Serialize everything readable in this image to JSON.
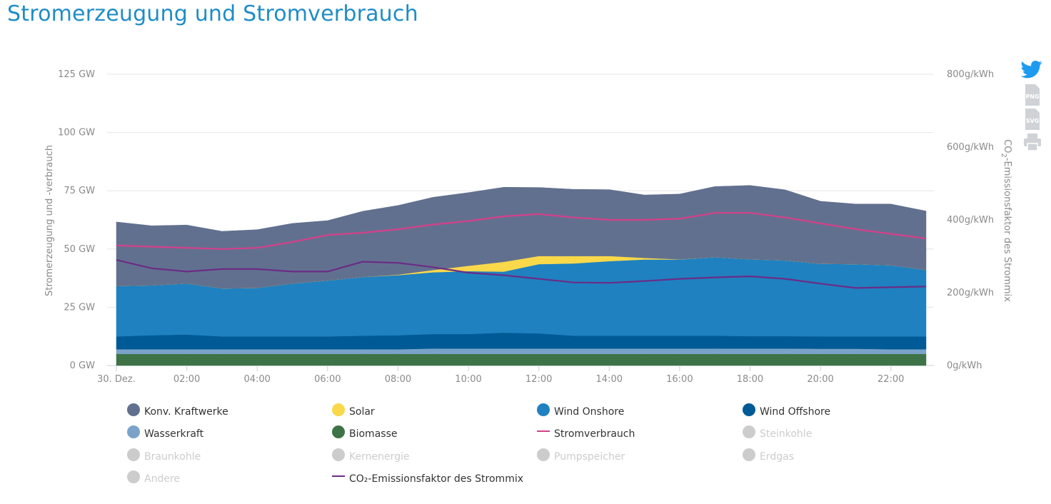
{
  "page": {
    "title": "Stromerzeugung und Stromverbrauch"
  },
  "toolbar": [
    {
      "id": "twitter",
      "icon": "twitter-icon"
    },
    {
      "id": "png",
      "icon": "png-download-icon",
      "label": "PNG"
    },
    {
      "id": "svg",
      "icon": "svg-download-icon",
      "label": "SVG"
    },
    {
      "id": "print",
      "icon": "print-icon"
    }
  ],
  "chart_data": {
    "type": "area",
    "title": "",
    "ylabel": "Stromerzeugung und -verbrauch",
    "y2label": "CO2-Emissionsfaktor des Strommix",
    "ylim": [
      0,
      125
    ],
    "y2lim": [
      0,
      800
    ],
    "grid": true,
    "stacked": true,
    "x": [
      "30. Dez.",
      "01:00",
      "02:00",
      "03:00",
      "04:00",
      "05:00",
      "06:00",
      "07:00",
      "08:00",
      "09:00",
      "10:00",
      "11:00",
      "12:00",
      "13:00",
      "14:00",
      "15:00",
      "16:00",
      "17:00",
      "18:00",
      "19:00",
      "20:00",
      "21:00",
      "22:00",
      "23:00"
    ],
    "x_tick_labels": [
      "30. Dez.",
      "02:00",
      "04:00",
      "06:00",
      "08:00",
      "10:00",
      "12:00",
      "14:00",
      "16:00",
      "18:00",
      "20:00",
      "22:00"
    ],
    "y_tick_labels": [
      "0 GW",
      "25 GW",
      "50 GW",
      "75 GW",
      "100 GW",
      "125 GW"
    ],
    "y2_tick_labels": [
      "0g/kWh",
      "200g/kWh",
      "400g/kWh",
      "600g/kWh",
      "800g/kWh"
    ],
    "area_series": [
      {
        "name": "Biomasse",
        "color": "#3e7348",
        "values": [
          5,
          5,
          5,
          5,
          5,
          5,
          5,
          5,
          5,
          5,
          5,
          5,
          5,
          5,
          5,
          5,
          5,
          5,
          5,
          5,
          5,
          5,
          5,
          5
        ]
      },
      {
        "name": "Wasserkraft",
        "color": "#7ba3c9",
        "values": [
          2,
          2,
          2,
          2,
          2,
          2,
          2,
          2,
          2,
          2.3,
          2.3,
          2.3,
          2.3,
          2.3,
          2.3,
          2.3,
          2.3,
          2.3,
          2.3,
          2.3,
          2.2,
          2.2,
          2,
          2
        ]
      },
      {
        "name": "Wind Offshore",
        "color": "#005a96",
        "values": [
          5.5,
          6,
          6.3,
          5.5,
          5.5,
          5.5,
          5.5,
          5.8,
          6,
          6.2,
          6.2,
          6.8,
          6.5,
          5.5,
          5.5,
          5.5,
          5.5,
          5.5,
          5.3,
          5.3,
          5.3,
          5.3,
          5.5,
          5.5
        ]
      },
      {
        "name": "Wind Onshore",
        "color": "#1f81c0",
        "values": [
          21.6,
          21.4,
          21.9,
          20.6,
          20.8,
          22.7,
          24,
          25.2,
          25.8,
          26.5,
          27,
          26.2,
          29.7,
          31,
          32,
          32.7,
          32.7,
          33.7,
          33,
          32.5,
          31.2,
          31,
          30.5,
          28.5
        ]
      },
      {
        "name": "Solar",
        "color": "#f9d84a",
        "values": [
          0,
          0,
          0,
          0,
          0,
          0,
          0,
          0,
          0.2,
          1,
          2.3,
          4.2,
          3.5,
          3.2,
          2.2,
          0.7,
          0.1,
          0,
          0,
          0,
          0,
          0,
          0,
          0
        ]
      },
      {
        "name": "Konv. Kraftwerke",
        "color": "#62708f",
        "values": [
          27.5,
          25.6,
          25.1,
          24.5,
          25,
          25.8,
          25.7,
          28.2,
          29.7,
          31.2,
          31.4,
          32,
          29.4,
          28.6,
          28.5,
          27,
          28,
          30.3,
          31.7,
          30.3,
          26.8,
          25.8,
          26.3,
          25.3
        ]
      }
    ],
    "line_series": [
      {
        "name": "Stromverbrauch",
        "axis": "left",
        "color": "#d4408a",
        "values": [
          51.5,
          51,
          50.5,
          50,
          50.5,
          53,
          56,
          57,
          58.5,
          60.5,
          62,
          64,
          65,
          63.5,
          62.5,
          62.5,
          63,
          65.5,
          65.5,
          63.5,
          61,
          58.5,
          56.5,
          54.5
        ]
      },
      {
        "name": "CO₂-Emissionsfaktor des Strommix",
        "axis": "right",
        "color": "#6b2c86",
        "values": [
          290,
          267,
          258,
          265,
          265,
          258,
          258,
          285,
          282,
          270,
          255,
          248,
          238,
          228,
          227,
          232,
          238,
          242,
          245,
          238,
          225,
          213,
          215,
          217
        ]
      }
    ]
  },
  "legend": {
    "items": [
      {
        "label": "Konv. Kraftwerke",
        "color": "#62708f",
        "symbol": "dot",
        "enabled": true
      },
      {
        "label": "Solar",
        "color": "#f9d84a",
        "symbol": "dot",
        "enabled": true
      },
      {
        "label": "Wind Onshore",
        "color": "#1f81c0",
        "symbol": "dot",
        "enabled": true
      },
      {
        "label": "Wind Offshore",
        "color": "#005a96",
        "symbol": "dot",
        "enabled": true
      },
      {
        "label": "Wasserkraft",
        "color": "#7ba3c9",
        "symbol": "dot",
        "enabled": true
      },
      {
        "label": "Biomasse",
        "color": "#3e7348",
        "symbol": "dot",
        "enabled": true
      },
      {
        "label": "Stromverbrauch",
        "color": "#d4408a",
        "symbol": "line",
        "enabled": true
      },
      {
        "label": "Steinkohle",
        "color": "#cccccc",
        "symbol": "dot",
        "enabled": false
      },
      {
        "label": "Braunkohle",
        "color": "#cccccc",
        "symbol": "dot",
        "enabled": false
      },
      {
        "label": "Kernenergie",
        "color": "#cccccc",
        "symbol": "dot",
        "enabled": false
      },
      {
        "label": "Pumpspeicher",
        "color": "#cccccc",
        "symbol": "dot",
        "enabled": false
      },
      {
        "label": "Erdgas",
        "color": "#cccccc",
        "symbol": "dot",
        "enabled": false
      },
      {
        "label": "Andere",
        "color": "#cccccc",
        "symbol": "dot",
        "enabled": false
      },
      {
        "label": "CO₂-Emissionsfaktor des Strommix",
        "color": "#6b2c86",
        "symbol": "line",
        "enabled": true
      }
    ]
  }
}
